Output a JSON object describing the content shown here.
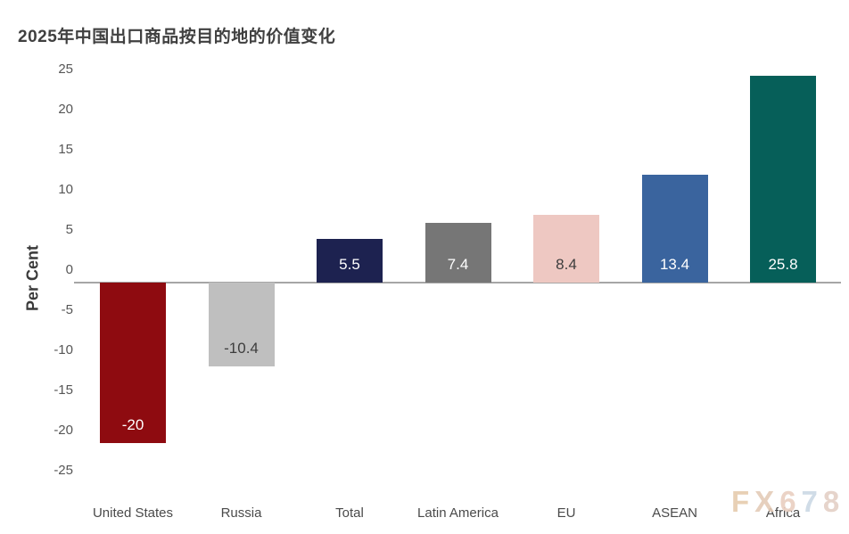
{
  "title": "2025年中国出口商品按目的地的价值变化",
  "chart_data": {
    "type": "bar",
    "title": "2025年中国出口商品按目的地的价值变化",
    "xlabel": "",
    "ylabel": "Per Cent",
    "ylim": [
      -25,
      25
    ],
    "y_ticks": [
      25,
      20,
      15,
      10,
      5,
      0,
      -5,
      -10,
      -15,
      -20,
      -25
    ],
    "grid": false,
    "legend": false,
    "categories": [
      "United States",
      "Russia",
      "Total",
      "Latin America",
      "EU",
      "ASEAN",
      "Africa"
    ],
    "values": [
      -20,
      -10.4,
      5.5,
      7.4,
      8.4,
      13.4,
      25.8
    ],
    "data_labels": [
      "-20",
      "-10.4",
      "5.5",
      "7.4",
      "8.4",
      "13.4",
      "25.8"
    ],
    "bar_colors": [
      "#8e0b10",
      "#bfbfbf",
      "#1d2250",
      "#767676",
      "#eec8c2",
      "#3a649e",
      "#065f59"
    ],
    "label_colors": [
      "#ffffff",
      "#3d3d3d",
      "#ffffff",
      "#ffffff",
      "#3d3d3d",
      "#ffffff",
      "#ffffff"
    ],
    "zero_line_color": "#a6a6a6"
  },
  "watermark": {
    "text": "FX678",
    "letter_colors": [
      "#e6ccae",
      "#e4cbb7",
      "#e9cfc0",
      "#ccd9e5",
      "#e4d0c6"
    ]
  }
}
